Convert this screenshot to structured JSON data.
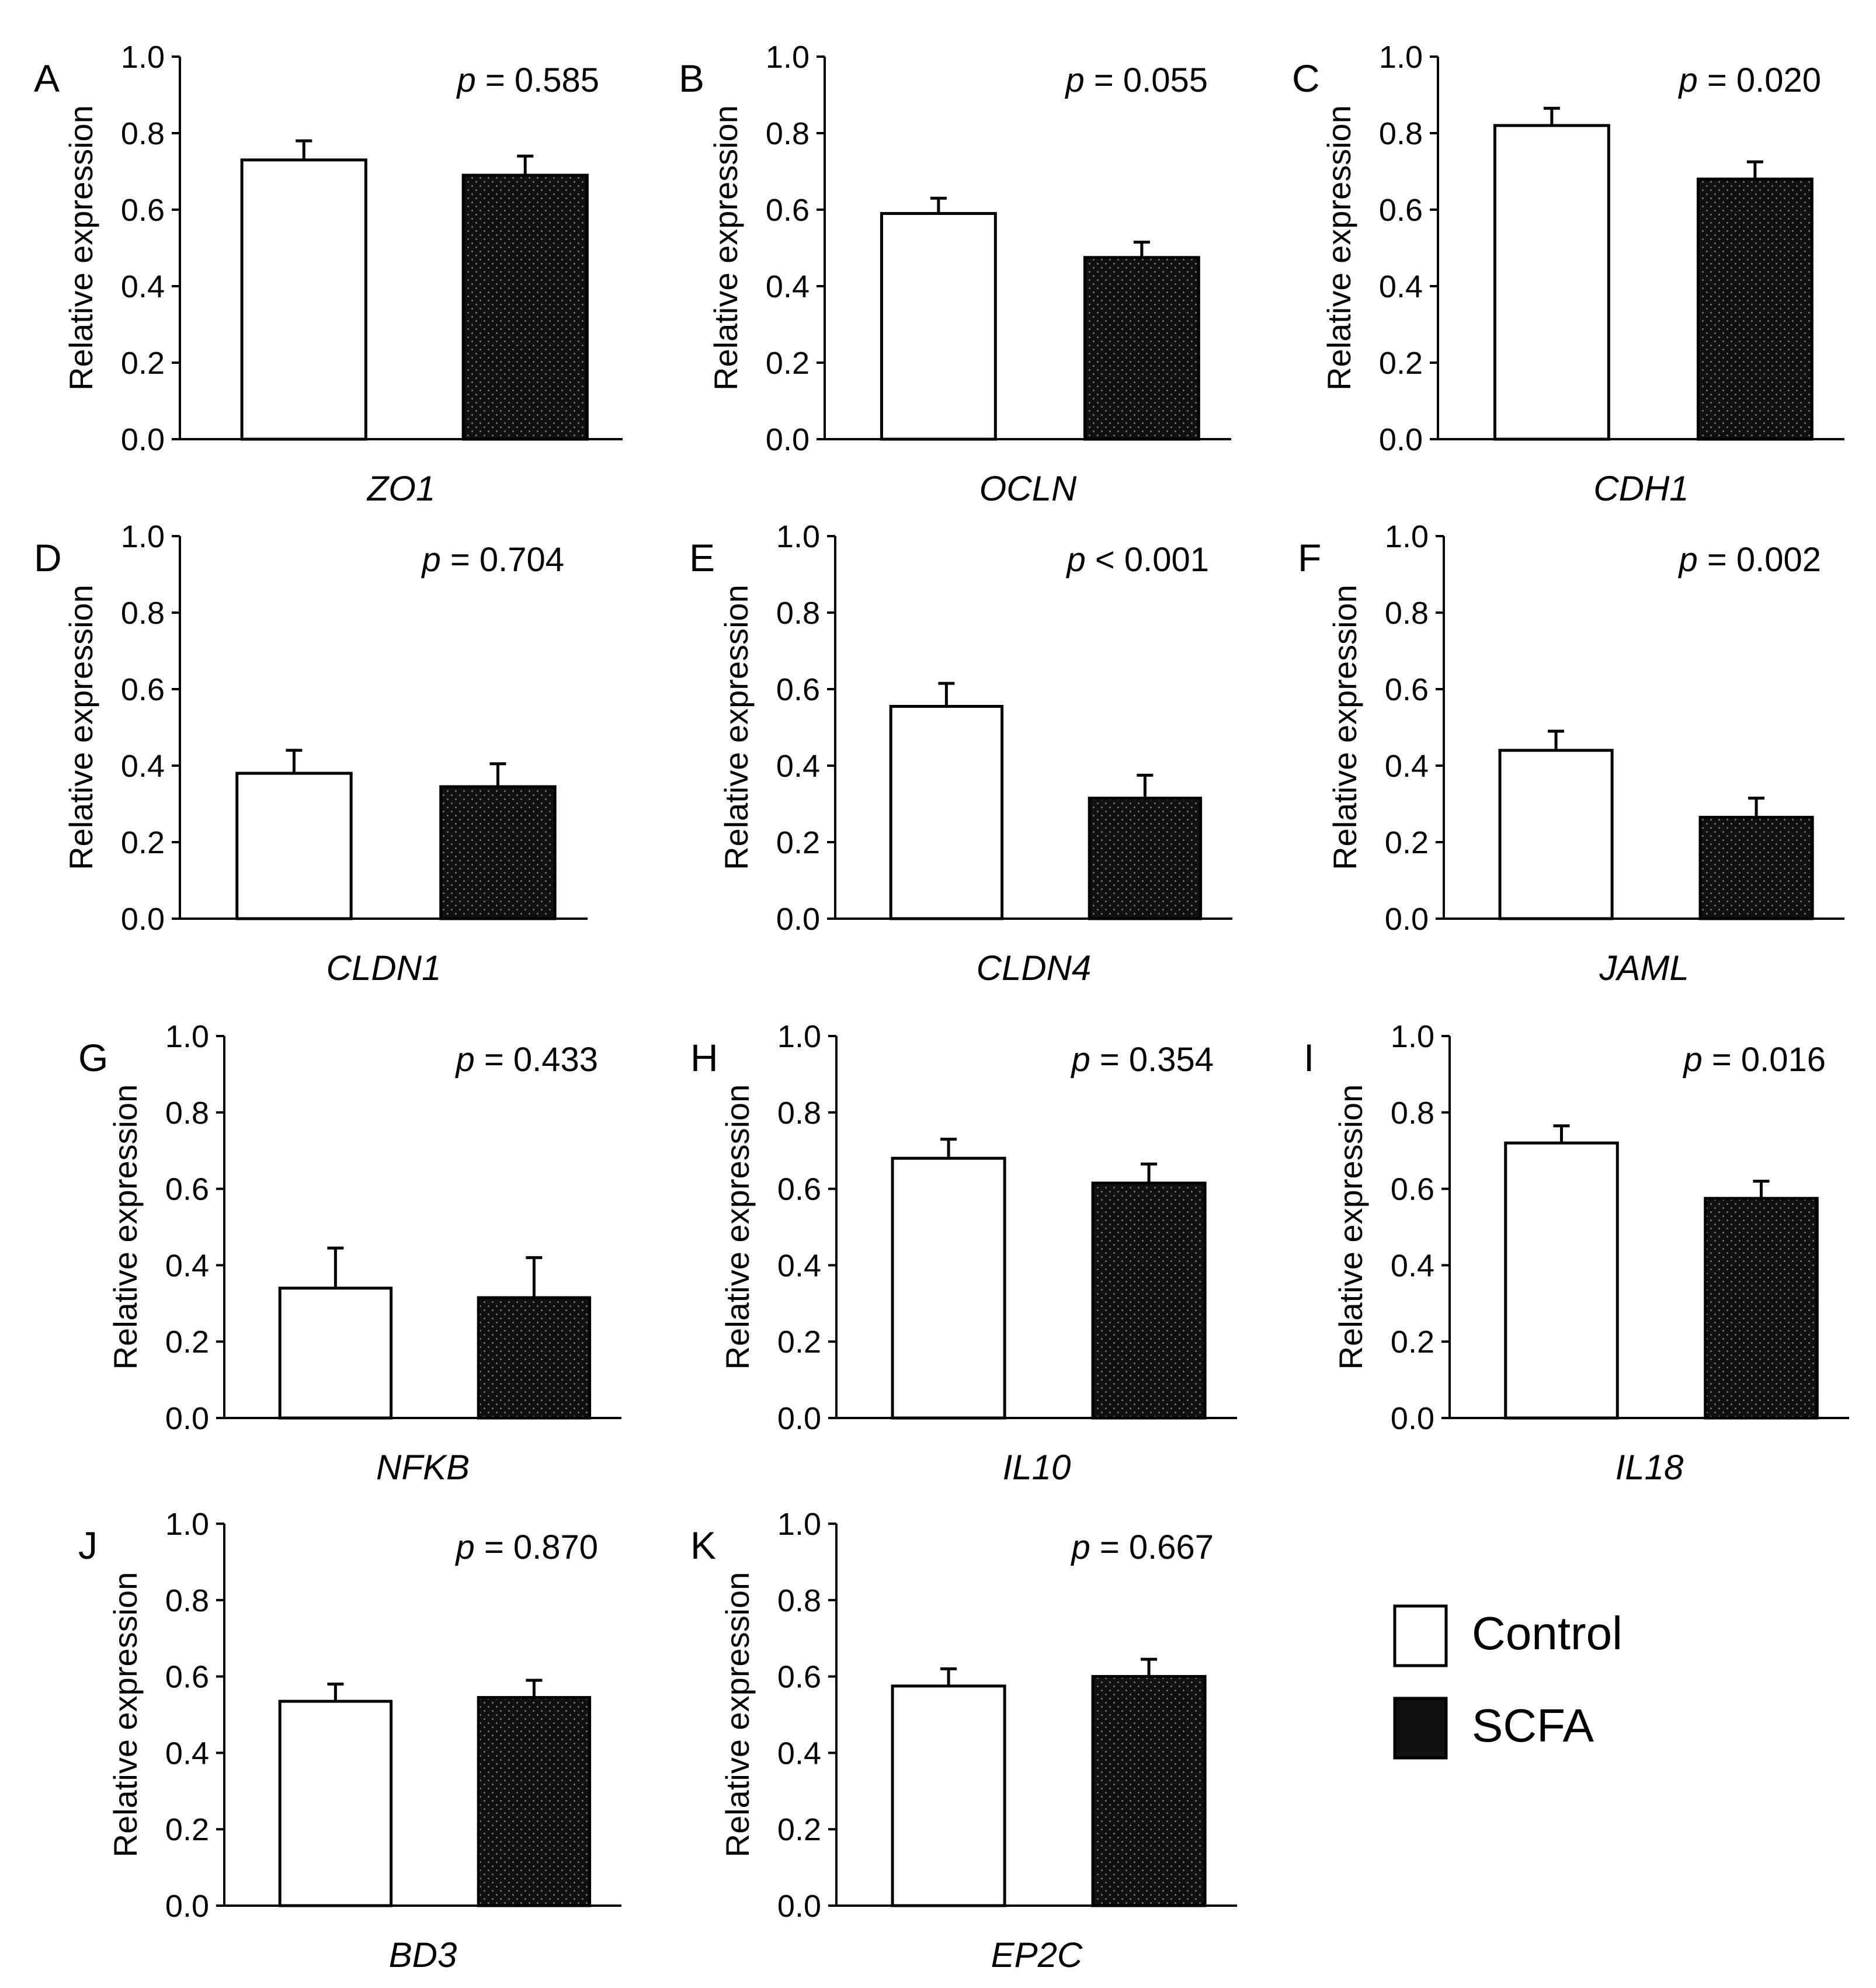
{
  "figure": {
    "legend": [
      {
        "label": "Control",
        "fill": "#ffffff"
      },
      {
        "label": "SCFA",
        "fill": "#111111"
      }
    ]
  },
  "chart_data": [
    {
      "type": "bar",
      "panel": "A",
      "gene": "ZO1",
      "ylabel": "Relative expression",
      "ylim": [
        0,
        1.0
      ],
      "yticks": [
        "0.0",
        "0.2",
        "0.4",
        "0.6",
        "0.8",
        "1.0"
      ],
      "p_prefix": "p",
      "p_text": " = 0.585",
      "series": [
        {
          "name": "Control",
          "values": [
            0.73
          ],
          "error": [
            0.05
          ]
        },
        {
          "name": "SCFA",
          "values": [
            0.69
          ],
          "error": [
            0.05
          ]
        }
      ]
    },
    {
      "type": "bar",
      "panel": "B",
      "gene": "OCLN",
      "ylabel": "Relative expression",
      "ylim": [
        0,
        1.0
      ],
      "yticks": [
        "0.0",
        "0.2",
        "0.4",
        "0.6",
        "0.8",
        "1.0"
      ],
      "p_prefix": "p",
      "p_text": " = 0.055",
      "series": [
        {
          "name": "Control",
          "values": [
            0.59
          ],
          "error": [
            0.04
          ]
        },
        {
          "name": "SCFA",
          "values": [
            0.475
          ],
          "error": [
            0.04
          ]
        }
      ]
    },
    {
      "type": "bar",
      "panel": "C",
      "gene": "CDH1",
      "ylabel": "Relative expression",
      "ylim": [
        0,
        1.0
      ],
      "yticks": [
        "0.0",
        "0.2",
        "0.4",
        "0.6",
        "0.8",
        "1.0"
      ],
      "p_prefix": "p",
      "p_text": " = 0.020",
      "series": [
        {
          "name": "Control",
          "values": [
            0.82
          ],
          "error": [
            0.045
          ]
        },
        {
          "name": "SCFA",
          "values": [
            0.68
          ],
          "error": [
            0.045
          ]
        }
      ]
    },
    {
      "type": "bar",
      "panel": "D",
      "gene": "CLDN1",
      "ylabel": "Relative expression",
      "ylim": [
        0,
        1.0
      ],
      "yticks": [
        "0.0",
        "0.2",
        "0.4",
        "0.6",
        "0.8",
        "1.0"
      ],
      "p_prefix": "p",
      "p_text": " = 0.704",
      "series": [
        {
          "name": "Control",
          "values": [
            0.38
          ],
          "error": [
            0.06
          ]
        },
        {
          "name": "SCFA",
          "values": [
            0.345
          ],
          "error": [
            0.06
          ]
        }
      ]
    },
    {
      "type": "bar",
      "panel": "E",
      "gene": "CLDN4",
      "ylabel": "Relative expression",
      "ylim": [
        0,
        1.0
      ],
      "yticks": [
        "0.0",
        "0.2",
        "0.4",
        "0.6",
        "0.8",
        "1.0"
      ],
      "p_prefix": "p",
      "p_text": " < 0.001",
      "series": [
        {
          "name": "Control",
          "values": [
            0.555
          ],
          "error": [
            0.06
          ]
        },
        {
          "name": "SCFA",
          "values": [
            0.315
          ],
          "error": [
            0.06
          ]
        }
      ]
    },
    {
      "type": "bar",
      "panel": "F",
      "gene": "JAML",
      "ylabel": "Relative expression",
      "ylim": [
        0,
        1.0
      ],
      "yticks": [
        "0.0",
        "0.2",
        "0.4",
        "0.6",
        "0.8",
        "1.0"
      ],
      "p_prefix": "p",
      "p_text": " = 0.002",
      "series": [
        {
          "name": "Control",
          "values": [
            0.44
          ],
          "error": [
            0.05
          ]
        },
        {
          "name": "SCFA",
          "values": [
            0.265
          ],
          "error": [
            0.05
          ]
        }
      ]
    },
    {
      "type": "bar",
      "panel": "G",
      "gene": "NFKB",
      "ylabel": "Relative expression",
      "ylim": [
        0,
        1.0
      ],
      "yticks": [
        "0.0",
        "0.2",
        "0.4",
        "0.6",
        "0.8",
        "1.0"
      ],
      "p_prefix": "p",
      "p_text": " = 0.433",
      "series": [
        {
          "name": "Control",
          "values": [
            0.34
          ],
          "error": [
            0.105
          ]
        },
        {
          "name": "SCFA",
          "values": [
            0.315
          ],
          "error": [
            0.105
          ]
        }
      ]
    },
    {
      "type": "bar",
      "panel": "H",
      "gene": "IL10",
      "ylabel": "Relative expression",
      "ylim": [
        0,
        1.0
      ],
      "yticks": [
        "0.0",
        "0.2",
        "0.4",
        "0.6",
        "0.8",
        "1.0"
      ],
      "p_prefix": "p",
      "p_text": " = 0.354",
      "series": [
        {
          "name": "Control",
          "values": [
            0.68
          ],
          "error": [
            0.05
          ]
        },
        {
          "name": "SCFA",
          "values": [
            0.615
          ],
          "error": [
            0.05
          ]
        }
      ]
    },
    {
      "type": "bar",
      "panel": "I",
      "gene": "IL18",
      "ylabel": "Relative expression",
      "ylim": [
        0,
        1.0
      ],
      "yticks": [
        "0.0",
        "0.2",
        "0.4",
        "0.6",
        "0.8",
        "1.0"
      ],
      "p_prefix": "p",
      "p_text": " = 0.016",
      "series": [
        {
          "name": "Control",
          "values": [
            0.72
          ],
          "error": [
            0.045
          ]
        },
        {
          "name": "SCFA",
          "values": [
            0.575
          ],
          "error": [
            0.045
          ]
        }
      ]
    },
    {
      "type": "bar",
      "panel": "J",
      "gene": "BD3",
      "ylabel": "Relative expression",
      "ylim": [
        0,
        1.0
      ],
      "yticks": [
        "0.0",
        "0.2",
        "0.4",
        "0.6",
        "0.8",
        "1.0"
      ],
      "p_prefix": "p",
      "p_text": " = 0.870",
      "series": [
        {
          "name": "Control",
          "values": [
            0.535
          ],
          "error": [
            0.045
          ]
        },
        {
          "name": "SCFA",
          "values": [
            0.545
          ],
          "error": [
            0.045
          ]
        }
      ]
    },
    {
      "type": "bar",
      "panel": "K",
      "gene": "EP2C",
      "ylabel": "Relative expression",
      "ylim": [
        0,
        1.0
      ],
      "yticks": [
        "0.0",
        "0.2",
        "0.4",
        "0.6",
        "0.8",
        "1.0"
      ],
      "p_prefix": "p",
      "p_text": " = 0.667",
      "series": [
        {
          "name": "Control",
          "values": [
            0.575
          ],
          "error": [
            0.045
          ]
        },
        {
          "name": "SCFA",
          "values": [
            0.6
          ],
          "error": [
            0.045
          ]
        }
      ]
    }
  ]
}
